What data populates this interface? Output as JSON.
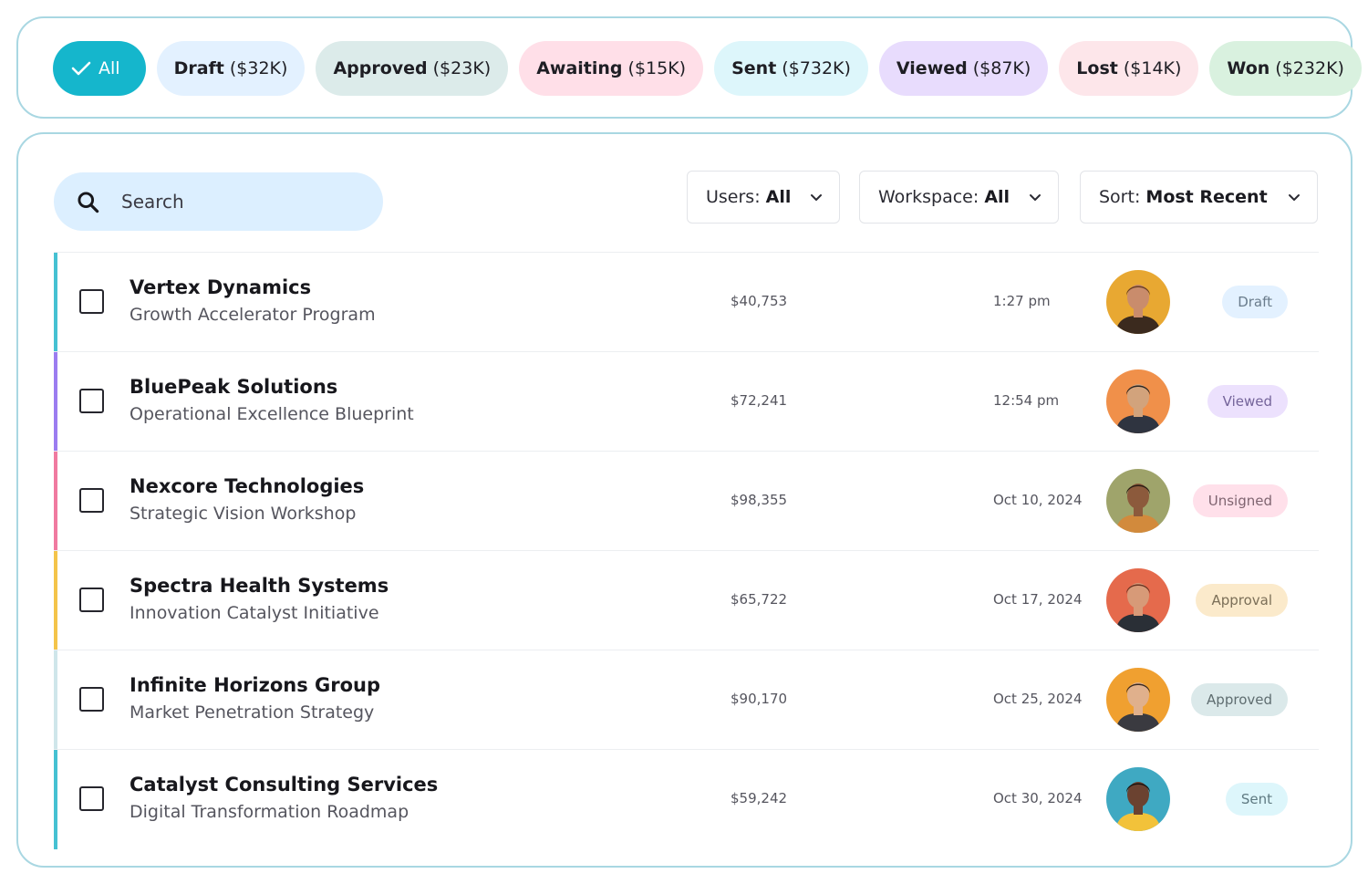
{
  "filters": [
    {
      "label": "All",
      "amount": "",
      "active": true,
      "bg": "#15b6cc"
    },
    {
      "label": "Draft",
      "amount": "($32K)",
      "bg": "#e3f1ff"
    },
    {
      "label": "Approved",
      "amount": "($23K)",
      "bg": "#dcebea"
    },
    {
      "label": "Awaiting",
      "amount": "($15K)",
      "bg": "#ffdfe8"
    },
    {
      "label": "Sent",
      "amount": "($732K)",
      "bg": "#ddf6fb"
    },
    {
      "label": "Viewed",
      "amount": "($87K)",
      "bg": "#e8dcfd"
    },
    {
      "label": "Lost",
      "amount": "($14K)",
      "bg": "#fde6ea"
    },
    {
      "label": "Won",
      "amount": "($232K)",
      "bg": "#d9f1df"
    }
  ],
  "search": {
    "placeholder": "Search"
  },
  "dropdowns": {
    "users": {
      "label": "Users:",
      "value": "All"
    },
    "workspace": {
      "label": "Workspace:",
      "value": "All"
    },
    "sort": {
      "label": "Sort:",
      "value": "Most Recent"
    }
  },
  "rows": [
    {
      "company": "Vertex Dynamics",
      "project": "Growth Accelerator Program",
      "amount": "$40,753",
      "time": "1:27 pm",
      "status": "Draft",
      "accent": "#45c1d2",
      "badge_bg": "#e3f1ff",
      "badge_fg": "#6a7c8c",
      "avatar": {
        "bg": "#e8a832",
        "skin": "#c98c6c",
        "hair": "#6b3f24",
        "shirt": "#3b2a1e"
      }
    },
    {
      "company": "BluePeak Solutions",
      "project": "Operational Excellence Blueprint",
      "amount": "$72,241",
      "time": "12:54 pm",
      "status": "Viewed",
      "accent": "#9b7cf0",
      "badge_bg": "#ece1fd",
      "badge_fg": "#74649a",
      "avatar": {
        "bg": "#f0904a",
        "skin": "#d2a37c",
        "hair": "#2b2621",
        "shirt": "#2f3440"
      }
    },
    {
      "company": "Nexcore Technologies",
      "project": "Strategic Vision Workshop",
      "amount": "$98,355",
      "time": "Oct 10, 2024",
      "status": "Unsigned",
      "accent": "#f07aa0",
      "badge_bg": "#ffe0ea",
      "badge_fg": "#7f6470",
      "avatar": {
        "bg": "#9fa46b",
        "skin": "#8c5a3c",
        "hair": "#2a1d14",
        "shirt": "#d28a3c"
      }
    },
    {
      "company": "Spectra Health Systems",
      "project": "Innovation Catalyst Initiative",
      "amount": "$65,722",
      "time": "Oct 17, 2024",
      "status": "Approval",
      "accent": "#f4c44a",
      "badge_bg": "#fbeacb",
      "badge_fg": "#7b6f58",
      "avatar": {
        "bg": "#e56a4c",
        "skin": "#d79a78",
        "hair": "#6b3422",
        "shirt": "#2a2f36"
      }
    },
    {
      "company": "Infinite Horizons Group",
      "project": "Market Penetration Strategy",
      "amount": "$90,170",
      "time": "Oct 25, 2024",
      "status": "Approved",
      "accent": "#cfe6ea",
      "badge_bg": "#dbe9ea",
      "badge_fg": "#5f6d70",
      "avatar": {
        "bg": "#f0a030",
        "skin": "#e0b08c",
        "hair": "#3b2a20",
        "shirt": "#3a3a40"
      }
    },
    {
      "company": "Catalyst Consulting Services",
      "project": "Digital Transformation Roadmap",
      "amount": "$59,242",
      "time": "Oct 30, 2024",
      "status": "Sent",
      "accent": "#45c1d2",
      "badge_bg": "#ddf6fb",
      "badge_fg": "#5f7a82",
      "avatar": {
        "bg": "#3fa9c2",
        "skin": "#6b4230",
        "hair": "#1a1410",
        "shirt": "#f2c23a"
      }
    }
  ]
}
